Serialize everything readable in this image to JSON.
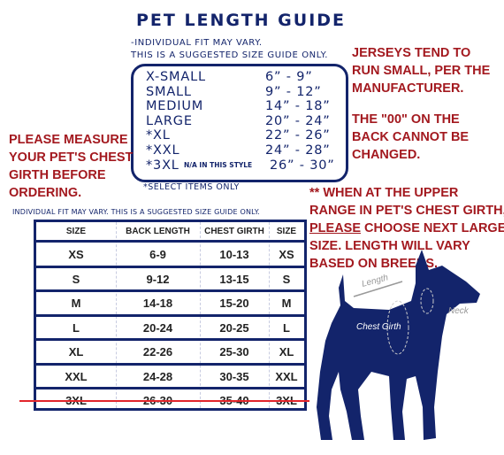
{
  "header": {
    "title": "PET LENGTH GUIDE",
    "subtitle": [
      "-INDIVIDUAL FIT MAY VARY.",
      "THIS IS A SUGGESTED SIZE GUIDE ONLY."
    ]
  },
  "size_box": {
    "rows": [
      [
        "X-SMALL",
        "6” - 9”"
      ],
      [
        "SMALL",
        "9” - 12”"
      ],
      [
        "MEDIUM",
        "14” - 18”"
      ],
      [
        "LARGE",
        "20” - 24”"
      ],
      [
        "*XL",
        "22” - 26”"
      ],
      [
        "*XXL",
        "24” - 28”"
      ],
      [
        "*3XL",
        "26” - 30”"
      ]
    ],
    "na_note": "N/A IN THIS STYLE",
    "footnote": "*SELECT ITEMS ONLY"
  },
  "notes": {
    "jerseys": [
      "JERSEYS TEND TO",
      "RUN SMALL, PER THE",
      "MANUFACTURER."
    ],
    "back": [
      "THE \"00\" ON THE",
      "BACK CANNOT BE",
      "CHANGED."
    ],
    "measure": [
      "PLEASE MEASURE",
      "YOUR PET'S CHEST",
      "GIRTH BEFORE",
      "ORDERING."
    ],
    "upper_range": [
      "** WHEN AT THE UPPER",
      "RANGE IN PET'S CHEST GIRTH,",
      "PLEASE",
      " CHOOSE NEXT LARGER",
      "SIZE. LENGTH WILL VARY",
      "BASED ON BREEDS."
    ]
  },
  "table": {
    "caption": "INDIVIDUAL FIT MAY VARY. THIS IS A SUGGESTED SIZE GUIDE ONLY.",
    "header": [
      "SIZE",
      "BACK LENGTH",
      "CHEST GIRTH",
      "SIZE"
    ],
    "rows": [
      [
        "XS",
        "6-9",
        "10-13",
        "XS"
      ],
      [
        "S",
        "9-12",
        "13-15",
        "S"
      ],
      [
        "M",
        "14-18",
        "15-20",
        "M"
      ],
      [
        "L",
        "20-24",
        "20-25",
        "L"
      ],
      [
        "XL",
        "22-26",
        "25-30",
        "XL"
      ],
      [
        "XXL",
        "24-28",
        "30-35",
        "XXL"
      ],
      [
        "3XL",
        "26-30",
        "35-40",
        "3XL"
      ]
    ]
  },
  "dog": {
    "length": "Length",
    "chest_girth": "Chest Girth",
    "neck": "Neck"
  }
}
